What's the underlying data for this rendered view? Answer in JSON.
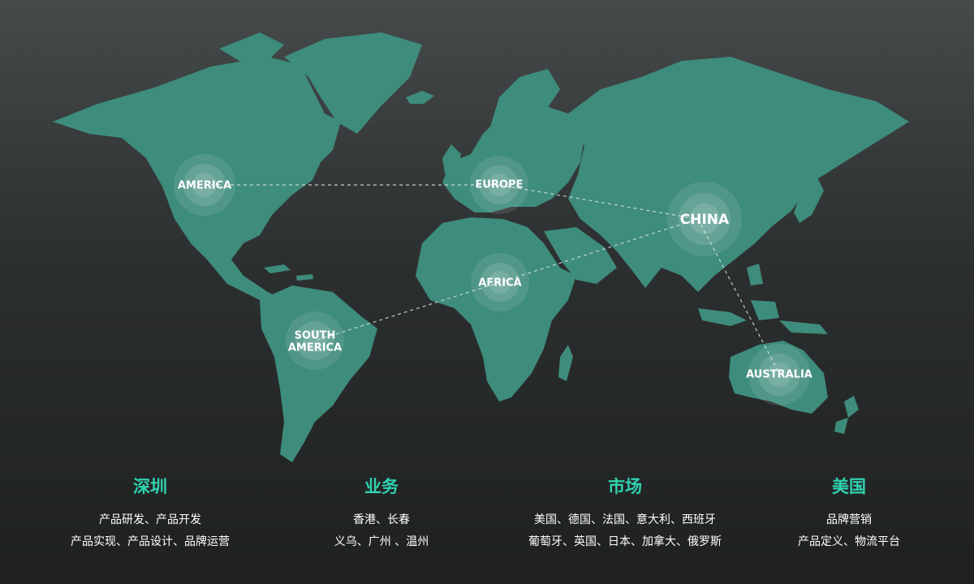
{
  "map": {
    "regions": [
      {
        "id": "america",
        "label": "AMERICA"
      },
      {
        "id": "europe",
        "label": "EUROPE"
      },
      {
        "id": "china",
        "label": "CHINA"
      },
      {
        "id": "africa",
        "label": "AFRICA"
      },
      {
        "id": "south_america",
        "label_line1": "SOUTH",
        "label_line2": "AMERICA"
      },
      {
        "id": "australia",
        "label": "AUSTRALIA"
      }
    ],
    "land_color": "#3e8c7c",
    "route_color": "#d8e6e2"
  },
  "columns": [
    {
      "title": "深圳",
      "lines": [
        "产品研发、产品开发",
        "产品实现、产品设计、品牌运营"
      ]
    },
    {
      "title": "业务",
      "lines": [
        "香港、长春",
        "义乌、广州 、温州"
      ]
    },
    {
      "title": "市场",
      "lines": [
        "美国、德国、法国、意大利、西班牙",
        "葡萄牙、英国、日本、加拿大、俄罗斯"
      ]
    },
    {
      "title": "美国",
      "lines": [
        "品牌营销",
        "产品定义、物流平台"
      ]
    }
  ],
  "accent_color": "#2fd3b0"
}
